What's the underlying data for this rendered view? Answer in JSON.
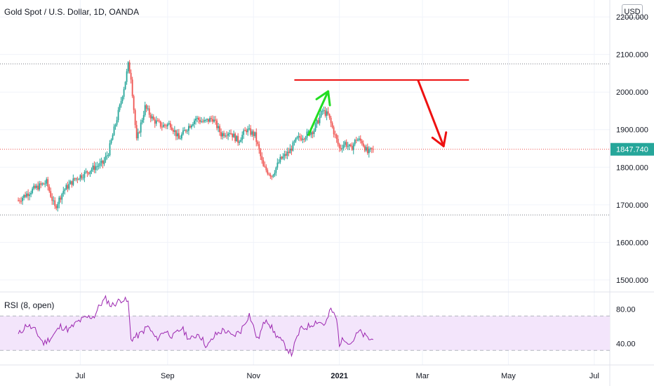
{
  "header": {
    "title": "Gold Spot / U.S. Dollar, 1D, OANDA",
    "currency_button": "USD"
  },
  "rsi_panel": {
    "label": "RSI (8, open)",
    "ticks": [
      "80.00",
      "40.00"
    ]
  },
  "colors": {
    "up": "#26a69a",
    "down": "#ef5350",
    "rsi_line": "#9c27b0",
    "rsi_band": "#f3e5fb",
    "price_tag": "#26a69a",
    "arrow_up": "#22dd22",
    "arrow_down": "#ee1111",
    "resistance": "#ee1111"
  },
  "chart_data": {
    "type": "candlestick",
    "title": "Gold Spot / U.S. Dollar, 1D, OANDA",
    "y_ticks": [
      "2200.000",
      "2100.000",
      "2000.000",
      "1900.000",
      "1800.000",
      "1700.000",
      "1600.000",
      "1500.000"
    ],
    "y_tick_values": [
      2200,
      2100,
      2000,
      1900,
      1800,
      1700,
      1600,
      1500
    ],
    "ylim": [
      1470,
      2245
    ],
    "x_ticks": [
      {
        "label": "Jul",
        "day": 44
      },
      {
        "label": "Sep",
        "day": 106
      },
      {
        "label": "Nov",
        "day": 167
      },
      {
        "label": "2021",
        "day": 228,
        "bold": true
      },
      {
        "label": "Mar",
        "day": 287
      },
      {
        "label": "May",
        "day": 348
      },
      {
        "label": "Jul",
        "day": 409
      }
    ],
    "xlim": [
      -13,
      420
    ],
    "last_price": "1847.740",
    "last_price_value": 1847.74,
    "horizontal_levels": [
      2075,
      1848,
      1673
    ],
    "resistance_line": {
      "day_start": 196,
      "day_end": 320,
      "value": 2032
    },
    "arrows": [
      {
        "direction": "up",
        "from_day": 206,
        "from_value": 1886,
        "to_day": 220,
        "to_value": 2002
      },
      {
        "direction": "down",
        "from_day": 284,
        "from_value": 2030,
        "to_day": 302,
        "to_value": 1856
      }
    ],
    "series_anchors": {
      "days": [
        0,
        10,
        20,
        26,
        32,
        40,
        48,
        55,
        60,
        64,
        68,
        72,
        76,
        78,
        80,
        84,
        90,
        96,
        102,
        108,
        114,
        120,
        126,
        132,
        138,
        144,
        150,
        156,
        162,
        168,
        174,
        180,
        186,
        192,
        198,
        204,
        210,
        216,
        220,
        228,
        232,
        236,
        240,
        244,
        248,
        252
      ],
      "closes": [
        1712,
        1740,
        1760,
        1692,
        1738,
        1768,
        1785,
        1802,
        1810,
        1840,
        1900,
        1960,
        2030,
        2072,
        2040,
        1870,
        1960,
        1925,
        1910,
        1915,
        1875,
        1905,
        1930,
        1920,
        1930,
        1888,
        1895,
        1870,
        1900,
        1885,
        1800,
        1778,
        1820,
        1840,
        1875,
        1885,
        1900,
        1950,
        1938,
        1850,
        1865,
        1848,
        1875,
        1868,
        1838,
        1847.74
      ]
    },
    "rsi": {
      "ylim": [
        15,
        100
      ],
      "overbought": 72,
      "oversold": 32,
      "values_by_day": [
        [
          0,
          50
        ],
        [
          6,
          62
        ],
        [
          12,
          55
        ],
        [
          18,
          40
        ],
        [
          24,
          48
        ],
        [
          30,
          60
        ],
        [
          36,
          56
        ],
        [
          42,
          65
        ],
        [
          48,
          70
        ],
        [
          54,
          72
        ],
        [
          58,
          85
        ],
        [
          62,
          92
        ],
        [
          66,
          84
        ],
        [
          70,
          88
        ],
        [
          74,
          92
        ],
        [
          78,
          88
        ],
        [
          80,
          45
        ],
        [
          86,
          50
        ],
        [
          92,
          60
        ],
        [
          98,
          45
        ],
        [
          104,
          55
        ],
        [
          110,
          48
        ],
        [
          116,
          58
        ],
        [
          122,
          44
        ],
        [
          128,
          52
        ],
        [
          134,
          36
        ],
        [
          140,
          50
        ],
        [
          146,
          56
        ],
        [
          152,
          48
        ],
        [
          158,
          55
        ],
        [
          164,
          74
        ],
        [
          170,
          44
        ],
        [
          176,
          70
        ],
        [
          182,
          52
        ],
        [
          188,
          40
        ],
        [
          194,
          28
        ],
        [
          200,
          56
        ],
        [
          206,
          60
        ],
        [
          212,
          66
        ],
        [
          218,
          62
        ],
        [
          222,
          80
        ],
        [
          226,
          68
        ],
        [
          228,
          40
        ],
        [
          232,
          46
        ],
        [
          236,
          40
        ],
        [
          242,
          54
        ],
        [
          248,
          46
        ],
        [
          252,
          44
        ]
      ]
    }
  }
}
